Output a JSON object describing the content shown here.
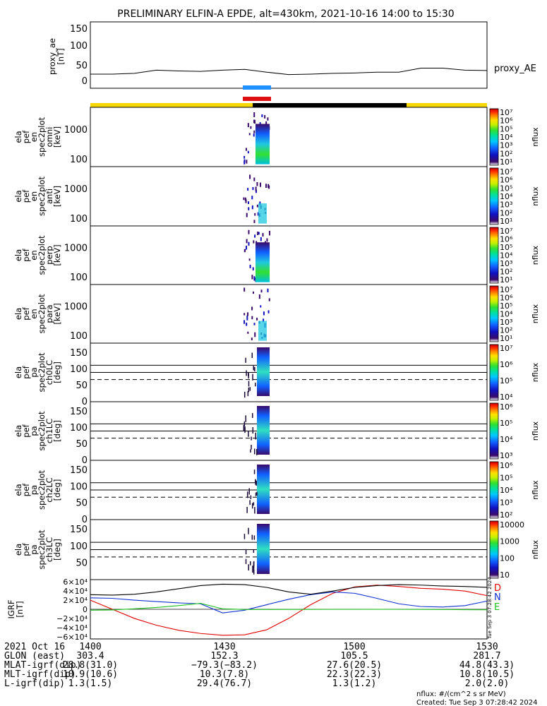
{
  "title": "PRELIMINARY ELFIN-A EPDE, alt=430km, 2021-10-16 14:00 to 15:30",
  "proxy_ae": {
    "ylabel": [
      "proxy_ae",
      "[nT]"
    ],
    "yticks": [
      "150",
      "100",
      "50",
      "0"
    ],
    "legend": "proxy_AE"
  },
  "spec_panels": [
    {
      "ylabel": [
        "ela",
        "pef",
        "en",
        "spec2plot",
        "omni",
        "[keV]"
      ],
      "yticks": [
        "1000",
        "100"
      ],
      "cbar_ticks": [
        "10⁷",
        "10⁶",
        "10⁵",
        "10⁴",
        "10³",
        "10²",
        "10¹"
      ],
      "cbar_label": "nflux"
    },
    {
      "ylabel": [
        "ela",
        "pef",
        "en",
        "spec2plot",
        "anti",
        "[keV]"
      ],
      "yticks": [
        "1000",
        "100"
      ],
      "cbar_ticks": [
        "10⁷",
        "10⁶",
        "10⁵",
        "10⁴",
        "10³",
        "10²",
        "10¹"
      ],
      "cbar_label": "nflux"
    },
    {
      "ylabel": [
        "ela",
        "pef",
        "en",
        "spec2plot",
        "perp",
        "[keV]"
      ],
      "yticks": [
        "1000",
        "100"
      ],
      "cbar_ticks": [
        "10⁷",
        "10⁶",
        "10⁵",
        "10⁴",
        "10³",
        "10²",
        "10¹"
      ],
      "cbar_label": "nflux"
    },
    {
      "ylabel": [
        "ela",
        "pef",
        "en",
        "spec2plot",
        "para",
        "[keV]"
      ],
      "yticks": [
        "1000",
        "100"
      ],
      "cbar_ticks": [
        "10⁷",
        "10⁶",
        "10⁵",
        "10⁴",
        "10³",
        "10²",
        "10¹"
      ],
      "cbar_label": "nflux"
    },
    {
      "ylabel": [
        "ela",
        "pef",
        "pa",
        "spec2plot",
        "ch0LC",
        "[deg]"
      ],
      "yticks": [
        "150",
        "100",
        "50",
        "0"
      ],
      "cbar_ticks": [
        "10⁷",
        "10⁶",
        "10⁵",
        "10⁴"
      ],
      "cbar_label": "nflux"
    },
    {
      "ylabel": [
        "ela",
        "pef",
        "pa",
        "spec2plot",
        "ch1LC",
        "[deg]"
      ],
      "yticks": [
        "150",
        "100",
        "50",
        "0"
      ],
      "cbar_ticks": [
        "10⁶",
        "10⁵",
        "10⁴",
        "10³"
      ],
      "cbar_label": "nflux"
    },
    {
      "ylabel": [
        "ela",
        "pef",
        "pa",
        "spec2plot",
        "ch2LC",
        "[deg]"
      ],
      "yticks": [
        "150",
        "100",
        "50",
        "0"
      ],
      "cbar_ticks": [
        "10⁶",
        "10⁵",
        "10⁴",
        "10³",
        "10²"
      ],
      "cbar_label": "nflux"
    },
    {
      "ylabel": [
        "ela",
        "pef",
        "pa",
        "spec2plot",
        "ch3LC",
        "[deg]"
      ],
      "yticks": [
        "150",
        "100",
        "50"
      ],
      "cbar_ticks": [
        "10000",
        "1000",
        "100",
        "10"
      ],
      "cbar_label": "nflux"
    }
  ],
  "igrf": {
    "ylabel": [
      "IGRF",
      "[nT]"
    ],
    "yticks": [
      "6×10⁴",
      "4×10⁴",
      "2×10⁴",
      "0",
      "−2×10⁴",
      "−4×10⁴",
      "−6×10⁴"
    ],
    "legend": [
      {
        "label": "D",
        "color": "#e00000"
      },
      {
        "label": "N",
        "color": "#1030d0"
      },
      {
        "label": "E",
        "color": "#20c020"
      }
    ],
    "side_stamp": "Tue Sep  3 07:28:42 2024"
  },
  "footer": {
    "rows": [
      {
        "label": "2021 Oct 16",
        "values": [
          "1400",
          "1430",
          "1500",
          "1530"
        ]
      },
      {
        "label": "GLON (east)",
        "values": [
          "303.4",
          "152.3",
          "105.5",
          "281.7"
        ]
      },
      {
        "label": "MLAT-igrf(dip)",
        "values": [
          "28.8(31.0)",
          "−79.3(−83.2)",
          "27.6(20.5)",
          "44.8(43.3)"
        ]
      },
      {
        "label": "MLT-igrf(dip)",
        "values": [
          "10.9(10.6)",
          "10.3(7.8)",
          "22.3(22.3)",
          "10.8(10.5)"
        ]
      },
      {
        "label": "L-igrf(dip)",
        "values": [
          "1.3(1.5)",
          "29.4(76.7)",
          "1.3(1.2)",
          "2.0(2.0)"
        ]
      }
    ],
    "units_note": "nflux: #/(cm^2 s sr MeV)",
    "created": "Created: Tue Sep  3 07:28:42 2024"
  },
  "colors": {
    "yellow": "#f5d800",
    "blue_bar": "#1e90ff",
    "red_bar": "#e01010",
    "colorbar": [
      "#ffffff",
      "#3a0a6a",
      "#1010c0",
      "#1060ff",
      "#00c8ff",
      "#00e0a0",
      "#30e030",
      "#c8f000",
      "#ffe000",
      "#ff8000",
      "#ff2000",
      "#c00000"
    ]
  },
  "chart_data": {
    "type": "line",
    "time_range": [
      "2021-10-16 14:00",
      "2021-10-16 15:30"
    ],
    "x_ticks": [
      "1400",
      "1430",
      "1500",
      "1530"
    ],
    "series": [
      {
        "name": "proxy_AE",
        "x_minutes": [
          0,
          5,
          10,
          15,
          20,
          25,
          30,
          35,
          40,
          45,
          50,
          55,
          60,
          65,
          70,
          75,
          80,
          85,
          90
        ],
        "values": [
          25,
          25,
          27,
          35,
          33,
          32,
          35,
          37,
          30,
          24,
          25,
          27,
          28,
          30,
          30,
          40,
          40,
          35,
          34
        ],
        "ylim": [
          -10,
          155
        ]
      },
      {
        "name": "D",
        "x_minutes": [
          0,
          5,
          10,
          15,
          20,
          25,
          30,
          35,
          40,
          45,
          50,
          55,
          60,
          65,
          70,
          75,
          80,
          85,
          90
        ],
        "values": [
          20000,
          0,
          -20000,
          -35000,
          -46000,
          -53000,
          -57000,
          -56000,
          -45000,
          -20000,
          10000,
          35000,
          49000,
          53000,
          50000,
          46000,
          44000,
          40000,
          30000
        ],
        "ylim": [
          -65000,
          65000
        ]
      },
      {
        "name": "N",
        "x_minutes": [
          0,
          5,
          10,
          15,
          20,
          25,
          30,
          35,
          40,
          45,
          50,
          55,
          60,
          65,
          70,
          75,
          80,
          85,
          90
        ],
        "values": [
          25000,
          24000,
          20000,
          17000,
          14000,
          12000,
          -8000,
          -2000,
          10000,
          22000,
          32000,
          38000,
          35000,
          24000,
          12000,
          6000,
          5000,
          8000,
          18000
        ],
        "ylim": [
          -65000,
          65000
        ]
      },
      {
        "name": "E",
        "x_minutes": [
          0,
          5,
          10,
          15,
          20,
          25,
          30,
          35,
          40,
          45,
          50,
          55,
          60,
          65,
          70,
          75,
          80,
          85,
          90
        ],
        "values": [
          -2000,
          -1500,
          1000,
          4000,
          8000,
          13000,
          1000,
          -500,
          -500,
          -300,
          -300,
          -200,
          -200,
          -100,
          -200,
          -300,
          -500,
          -800,
          -1000
        ],
        "ylim": [
          -65000,
          65000
        ]
      },
      {
        "name": "|B|",
        "x_minutes": [
          0,
          5,
          10,
          15,
          20,
          25,
          30,
          35,
          40,
          45,
          50,
          55,
          60,
          65,
          70,
          75,
          80,
          85,
          90
        ],
        "values": [
          32000,
          31000,
          33000,
          38000,
          45000,
          52000,
          55000,
          54000,
          48000,
          38000,
          33000,
          40000,
          48000,
          52000,
          54000,
          53000,
          51000,
          50000,
          48000
        ],
        "ylim": [
          -65000,
          65000
        ]
      }
    ],
    "science_zones": {
      "x_minutes": [
        [
          0,
          40
        ],
        [
          40,
          77
        ],
        [
          77,
          90
        ]
      ],
      "status": [
        "yellow",
        "black",
        "yellow"
      ],
      "markers": [
        {
          "x_minutes": [
            36,
            44
          ],
          "color": "blue"
        },
        {
          "x_minutes": [
            36,
            44
          ],
          "color": "red"
        }
      ]
    }
  }
}
